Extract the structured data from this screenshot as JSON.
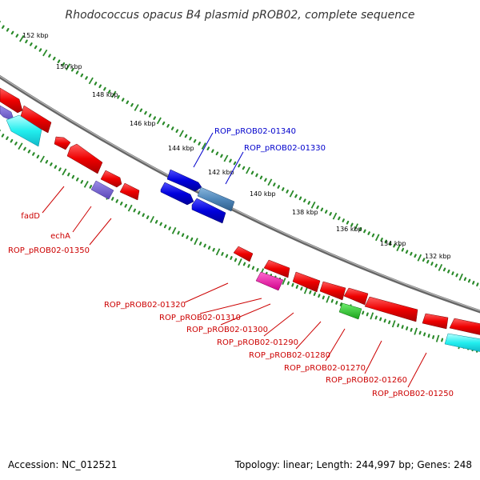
{
  "title": "Rhodococcus opacus B4 plasmid pROB02, complete sequence",
  "ruler_ticks": [
    "152 kbp",
    "150 kbp",
    "148 kbp",
    "146 kbp",
    "144 kbp",
    "142 kbp",
    "140 kbp",
    "138 kbp",
    "136 kbp",
    "134 kbp",
    "132 kbp"
  ],
  "labels_forward": [
    "ROP_pROB02-01340",
    "ROP_pROB02-01330"
  ],
  "labels_reverse": [
    "fadD",
    "echA",
    "ROP_pROB02-01350",
    "ROP_pROB02-01320",
    "ROP_pROB02-01310",
    "ROP_pROB02-01300",
    "ROP_pROB02-01290",
    "ROP_pROB02-01280",
    "ROP_pROB02-01270",
    "ROP_pROB02-01260",
    "ROP_pROB02-01250"
  ],
  "footer": {
    "accession": "Accession: NC_012521",
    "stats": "Topology: linear; Length: 244,997 bp; Genes: 248"
  },
  "colors": {
    "forward_label": "#0000cc",
    "reverse_label": "#cc0000",
    "backbone": "#888888",
    "ruler": "#2a8a2a"
  }
}
